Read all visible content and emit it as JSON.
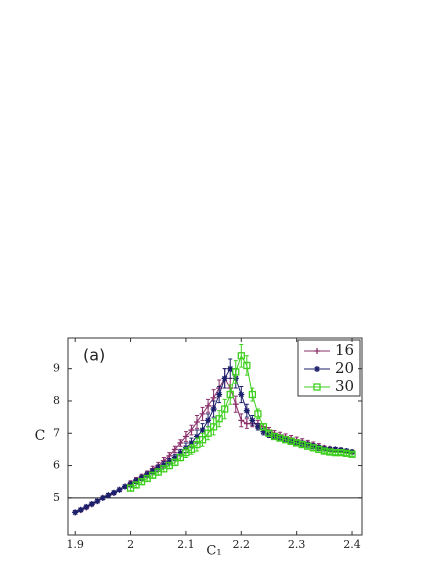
{
  "chart_data": {
    "type": "line",
    "annotation": "(a)",
    "x_label": "C₁",
    "y_label": "C",
    "xlim": [
      1.887,
      2.418
    ],
    "ylim": [
      3.85,
      9.95
    ],
    "xticks": [
      1.9,
      2,
      2.1,
      2.2,
      2.3,
      2.4
    ],
    "yticks": [
      5,
      6,
      7,
      8,
      9
    ],
    "hline": 5,
    "legend": "top-right",
    "x": [
      1.9,
      1.91,
      1.92,
      1.93,
      1.94,
      1.95,
      1.96,
      1.97,
      1.98,
      1.99,
      2.0,
      2.01,
      2.02,
      2.03,
      2.04,
      2.05,
      2.06,
      2.07,
      2.08,
      2.09,
      2.1,
      2.11,
      2.12,
      2.13,
      2.14,
      2.15,
      2.16,
      2.17,
      2.18,
      2.19,
      2.2,
      2.21,
      2.22,
      2.23,
      2.24,
      2.25,
      2.26,
      2.27,
      2.28,
      2.29,
      2.3,
      2.31,
      2.32,
      2.33,
      2.34,
      2.35,
      2.36,
      2.37,
      2.38,
      2.39,
      2.4
    ],
    "series": [
      {
        "name": "16",
        "color": "#8a2f6a",
        "marker": "plus",
        "values": [
          4.55,
          4.62,
          4.7,
          4.8,
          4.9,
          5.0,
          5.08,
          5.15,
          5.25,
          5.35,
          5.45,
          5.55,
          5.65,
          5.75,
          5.9,
          6.0,
          6.15,
          6.3,
          6.5,
          6.7,
          6.9,
          7.1,
          7.35,
          7.6,
          7.85,
          8.1,
          8.4,
          8.7,
          8.4,
          7.9,
          7.4,
          7.3,
          7.3,
          7.3,
          7.2,
          7.1,
          7.0,
          6.95,
          6.9,
          6.85,
          6.8,
          6.75,
          6.7,
          6.65,
          6.6,
          6.55,
          6.52,
          6.5,
          6.48,
          6.45,
          6.42
        ],
        "errors": [
          0.05,
          0.05,
          0.05,
          0.05,
          0.05,
          0.05,
          0.05,
          0.05,
          0.05,
          0.05,
          0.08,
          0.08,
          0.08,
          0.08,
          0.08,
          0.1,
          0.1,
          0.1,
          0.1,
          0.1,
          0.15,
          0.15,
          0.2,
          0.2,
          0.2,
          0.25,
          0.25,
          0.3,
          0.3,
          0.25,
          0.2,
          0.15,
          0.1,
          0.1,
          0.1,
          0.08,
          0.08,
          0.08,
          0.08,
          0.08,
          0.08,
          0.08,
          0.08,
          0.08,
          0.08,
          0.06,
          0.06,
          0.06,
          0.06,
          0.06,
          0.06
        ]
      },
      {
        "name": "20",
        "color": "#1c1f6b",
        "marker": "star",
        "values": [
          4.55,
          4.63,
          4.72,
          4.81,
          4.9,
          5.0,
          5.08,
          5.16,
          5.25,
          5.35,
          5.42,
          5.52,
          5.62,
          5.72,
          5.82,
          5.92,
          6.02,
          6.12,
          6.25,
          6.4,
          6.55,
          6.7,
          6.9,
          7.1,
          7.4,
          7.75,
          8.2,
          8.7,
          9.0,
          8.7,
          8.2,
          7.7,
          7.4,
          7.2,
          7.05,
          6.95,
          6.9,
          6.85,
          6.8,
          6.75,
          6.7,
          6.68,
          6.65,
          6.6,
          6.55,
          6.52,
          6.5,
          6.5,
          6.48,
          6.45,
          6.42
        ],
        "errors": [
          0.05,
          0.05,
          0.05,
          0.05,
          0.05,
          0.05,
          0.05,
          0.05,
          0.05,
          0.05,
          0.08,
          0.08,
          0.08,
          0.08,
          0.08,
          0.1,
          0.1,
          0.1,
          0.1,
          0.1,
          0.15,
          0.15,
          0.2,
          0.2,
          0.2,
          0.25,
          0.25,
          0.3,
          0.3,
          0.3,
          0.25,
          0.2,
          0.15,
          0.1,
          0.1,
          0.08,
          0.08,
          0.08,
          0.08,
          0.08,
          0.08,
          0.08,
          0.08,
          0.08,
          0.08,
          0.06,
          0.06,
          0.06,
          0.06,
          0.06,
          0.06
        ]
      },
      {
        "name": "30",
        "color": "#3fcf1f",
        "marker": "square",
        "values": [
          null,
          null,
          null,
          null,
          null,
          null,
          null,
          null,
          null,
          null,
          5.3,
          5.4,
          5.5,
          5.6,
          5.7,
          5.8,
          5.9,
          6.0,
          6.1,
          6.25,
          6.4,
          6.5,
          6.65,
          6.8,
          7.0,
          7.2,
          7.45,
          7.75,
          8.2,
          8.9,
          9.4,
          9.1,
          8.2,
          7.6,
          7.2,
          7.0,
          6.9,
          6.85,
          6.8,
          6.75,
          6.7,
          6.65,
          6.6,
          6.55,
          6.5,
          6.45,
          6.42,
          6.4,
          6.4,
          6.38,
          6.35
        ],
        "errors": [
          null,
          null,
          null,
          null,
          null,
          null,
          null,
          null,
          null,
          null,
          0.08,
          0.08,
          0.08,
          0.08,
          0.08,
          0.1,
          0.1,
          0.1,
          0.1,
          0.1,
          0.15,
          0.15,
          0.2,
          0.2,
          0.2,
          0.25,
          0.25,
          0.3,
          0.3,
          0.35,
          0.35,
          0.3,
          0.2,
          0.15,
          0.1,
          0.08,
          0.08,
          0.08,
          0.08,
          0.08,
          0.08,
          0.08,
          0.08,
          0.08,
          0.08,
          0.06,
          0.06,
          0.06,
          0.06,
          0.06,
          0.06
        ]
      }
    ]
  }
}
